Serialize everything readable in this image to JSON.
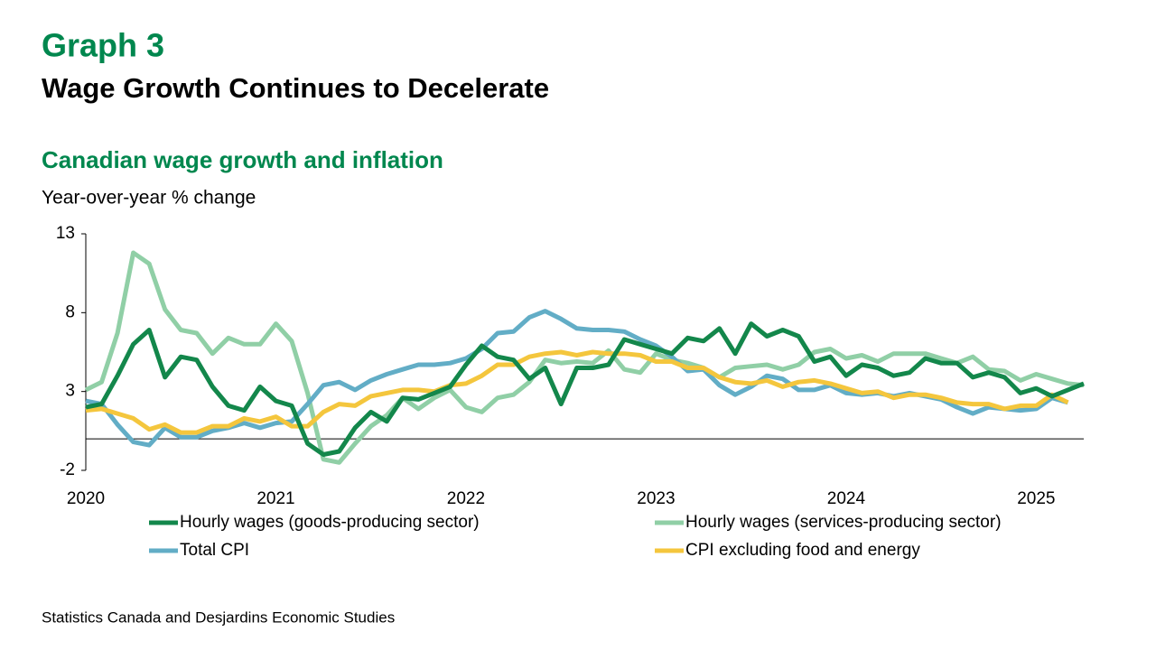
{
  "chart_data": {
    "type": "line",
    "graph_label": "Graph 3",
    "title": "Wage Growth Continues to Decelerate",
    "subtitle": "Canadian wage growth and inflation",
    "ylabel": "Year-over-year % change",
    "source": "Statistics Canada and Desjardins Economic Studies",
    "categories": [
      "2020",
      null,
      null,
      null,
      null,
      null,
      null,
      null,
      null,
      null,
      null,
      null,
      "2021",
      null,
      null,
      null,
      null,
      null,
      null,
      null,
      null,
      null,
      null,
      null,
      "2022",
      null,
      null,
      null,
      null,
      null,
      null,
      null,
      null,
      null,
      null,
      null,
      "2023",
      null,
      null,
      null,
      null,
      null,
      null,
      null,
      null,
      null,
      null,
      null,
      "2024",
      null,
      null,
      null,
      null,
      null,
      null,
      null,
      null,
      null,
      null,
      null,
      "2025",
      null,
      null,
      null
    ],
    "ylim": [
      -2,
      13
    ],
    "yticks": [
      -2,
      3,
      8,
      13
    ],
    "series": [
      {
        "name": "Hourly wages (goods-producing sector)",
        "color": "#13874b",
        "values": [
          2.0,
          2.2,
          4.0,
          6.0,
          6.9,
          3.9,
          5.2,
          5.0,
          3.3,
          2.1,
          1.8,
          3.3,
          2.4,
          2.1,
          -0.3,
          -1.0,
          -0.8,
          0.7,
          1.7,
          1.1,
          2.6,
          2.5,
          2.9,
          3.3,
          4.7,
          5.9,
          5.2,
          5.0,
          3.8,
          4.5,
          2.2,
          4.5,
          4.5,
          4.7,
          6.3,
          6.0,
          5.7,
          5.4,
          6.4,
          6.2,
          7.0,
          5.4,
          7.3,
          6.5,
          6.9,
          6.5,
          4.9,
          5.2,
          4.0,
          4.7,
          4.5,
          4.0,
          4.2,
          5.1,
          4.8,
          4.8,
          3.9,
          4.2,
          3.9,
          2.9,
          3.2,
          2.7,
          3.1,
          3.5
        ]
      },
      {
        "name": "Hourly wages (services-producing sector)",
        "color": "#90cfa6",
        "values": [
          3.1,
          3.6,
          6.7,
          11.8,
          11.1,
          8.2,
          6.9,
          6.7,
          5.4,
          6.4,
          6.0,
          6.0,
          7.3,
          6.2,
          2.9,
          -1.3,
          -1.5,
          -0.3,
          0.8,
          1.5,
          2.6,
          1.9,
          2.6,
          3.1,
          2.0,
          1.7,
          2.6,
          2.8,
          3.6,
          5.0,
          4.8,
          4.9,
          4.8,
          5.6,
          4.4,
          4.2,
          5.4,
          5.0,
          4.8,
          4.5,
          3.9,
          4.5,
          4.6,
          4.7,
          4.4,
          4.7,
          5.5,
          5.7,
          5.1,
          5.3,
          4.9,
          5.4,
          5.4,
          5.4,
          5.1,
          4.8,
          5.2,
          4.4,
          4.3,
          3.7,
          4.1,
          3.8,
          3.5,
          3.4
        ]
      },
      {
        "name": "Total CPI",
        "color": "#62adc6",
        "values": [
          2.4,
          2.2,
          0.9,
          -0.2,
          -0.4,
          0.7,
          0.1,
          0.1,
          0.5,
          0.7,
          1.0,
          0.7,
          1.0,
          1.1,
          2.2,
          3.4,
          3.6,
          3.1,
          3.7,
          4.1,
          4.4,
          4.7,
          4.7,
          4.8,
          5.1,
          5.7,
          6.7,
          6.8,
          7.7,
          8.1,
          7.6,
          7.0,
          6.9,
          6.9,
          6.8,
          6.3,
          5.9,
          5.2,
          4.3,
          4.4,
          3.4,
          2.8,
          3.3,
          4.0,
          3.8,
          3.1,
          3.1,
          3.4,
          2.9,
          2.8,
          2.9,
          2.7,
          2.9,
          2.7,
          2.5,
          2.0,
          1.6,
          2.0,
          1.9,
          1.8,
          1.9,
          2.6,
          2.3,
          null
        ]
      },
      {
        "name": "CPI excluding food and energy",
        "color": "#f4c63d",
        "values": [
          1.8,
          1.9,
          1.6,
          1.3,
          0.6,
          0.9,
          0.4,
          0.4,
          0.8,
          0.8,
          1.3,
          1.1,
          1.4,
          0.8,
          0.8,
          1.7,
          2.2,
          2.1,
          2.7,
          2.9,
          3.1,
          3.1,
          3.0,
          3.4,
          3.5,
          4.0,
          4.7,
          4.7,
          5.2,
          5.4,
          5.5,
          5.3,
          5.5,
          5.4,
          5.4,
          5.3,
          4.9,
          4.9,
          4.5,
          4.5,
          3.9,
          3.6,
          3.5,
          3.7,
          3.3,
          3.6,
          3.7,
          3.5,
          3.2,
          2.9,
          3.0,
          2.6,
          2.8,
          2.8,
          2.6,
          2.3,
          2.2,
          2.2,
          1.9,
          2.1,
          2.1,
          2.8,
          2.3,
          null
        ]
      }
    ]
  }
}
